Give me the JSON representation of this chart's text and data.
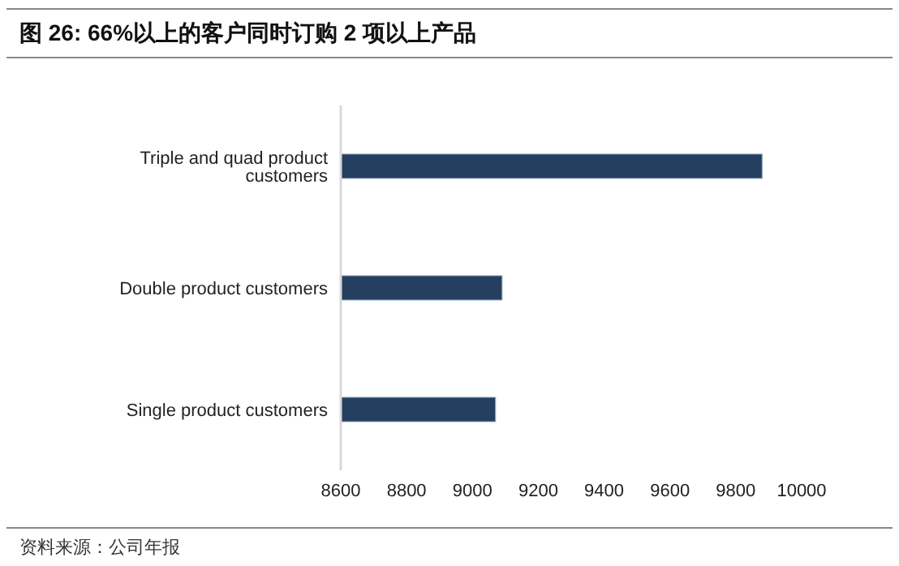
{
  "chart_data": {
    "type": "bar",
    "orientation": "horizontal",
    "title": "图 26: 66%以上的客户同时订购 2 项以上产品",
    "annotations": [
      "资料来源：公司年报"
    ],
    "categories": [
      "Triple and quad product customers",
      "Double product customers",
      "Single product customers"
    ],
    "values": [
      9880,
      9090,
      9070
    ],
    "color": "#243f60",
    "xlim": [
      8600,
      10000
    ],
    "xticks": [
      8600,
      8800,
      9000,
      9200,
      9400,
      9600,
      9800,
      10000
    ],
    "grid": false,
    "legend": false
  }
}
